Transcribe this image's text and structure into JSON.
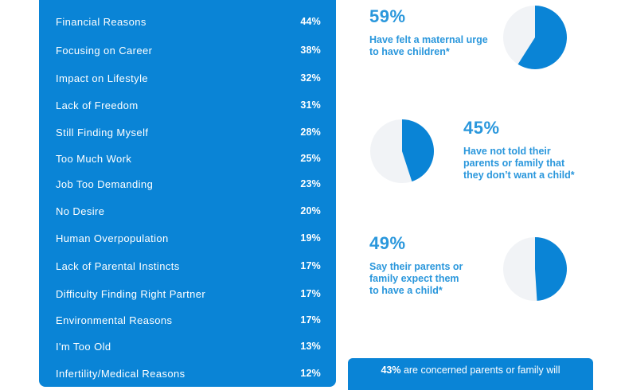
{
  "chart_data": [
    {
      "type": "table",
      "title": "",
      "categories": [
        "Financial Reasons",
        "Focusing on Career",
        "Impact on Lifestyle",
        "Lack of Freedom",
        "Still Finding Myself",
        "Too Much Work",
        "Job Too Demanding",
        "No Desire",
        "Human Overpopulation",
        "Lack of Parental Instincts",
        "Difficulty Finding Right Partner",
        "Environmental Reasons",
        "I'm Too Old",
        "Infertility/Medical Reasons"
      ],
      "values": [
        44,
        38,
        32,
        31,
        28,
        25,
        23,
        20,
        19,
        17,
        17,
        17,
        13,
        12
      ],
      "labels": [
        "44%",
        "38%",
        "32%",
        "31%",
        "28%",
        "25%",
        "23%",
        "20%",
        "19%",
        "17%",
        "17%",
        "17%",
        "13%",
        "12%"
      ]
    },
    {
      "type": "pie",
      "value_pct": 59,
      "big_label": "59%",
      "caption": "Have felt a maternal urge to have children*"
    },
    {
      "type": "pie",
      "value_pct": 45,
      "big_label": "45%",
      "caption": "Have not told their parents or family that they don’t want a child*"
    },
    {
      "type": "pie",
      "value_pct": 49,
      "big_label": "49%",
      "caption": "Say their parents or family expect them to have a child*"
    }
  ],
  "bottom_note": {
    "bold": "43%",
    "text": " are concerned parents or family will"
  },
  "colors": {
    "accent": "#0a84d6",
    "stat_text": "#2a97dc",
    "pie_rest": "#f1f3f6"
  }
}
